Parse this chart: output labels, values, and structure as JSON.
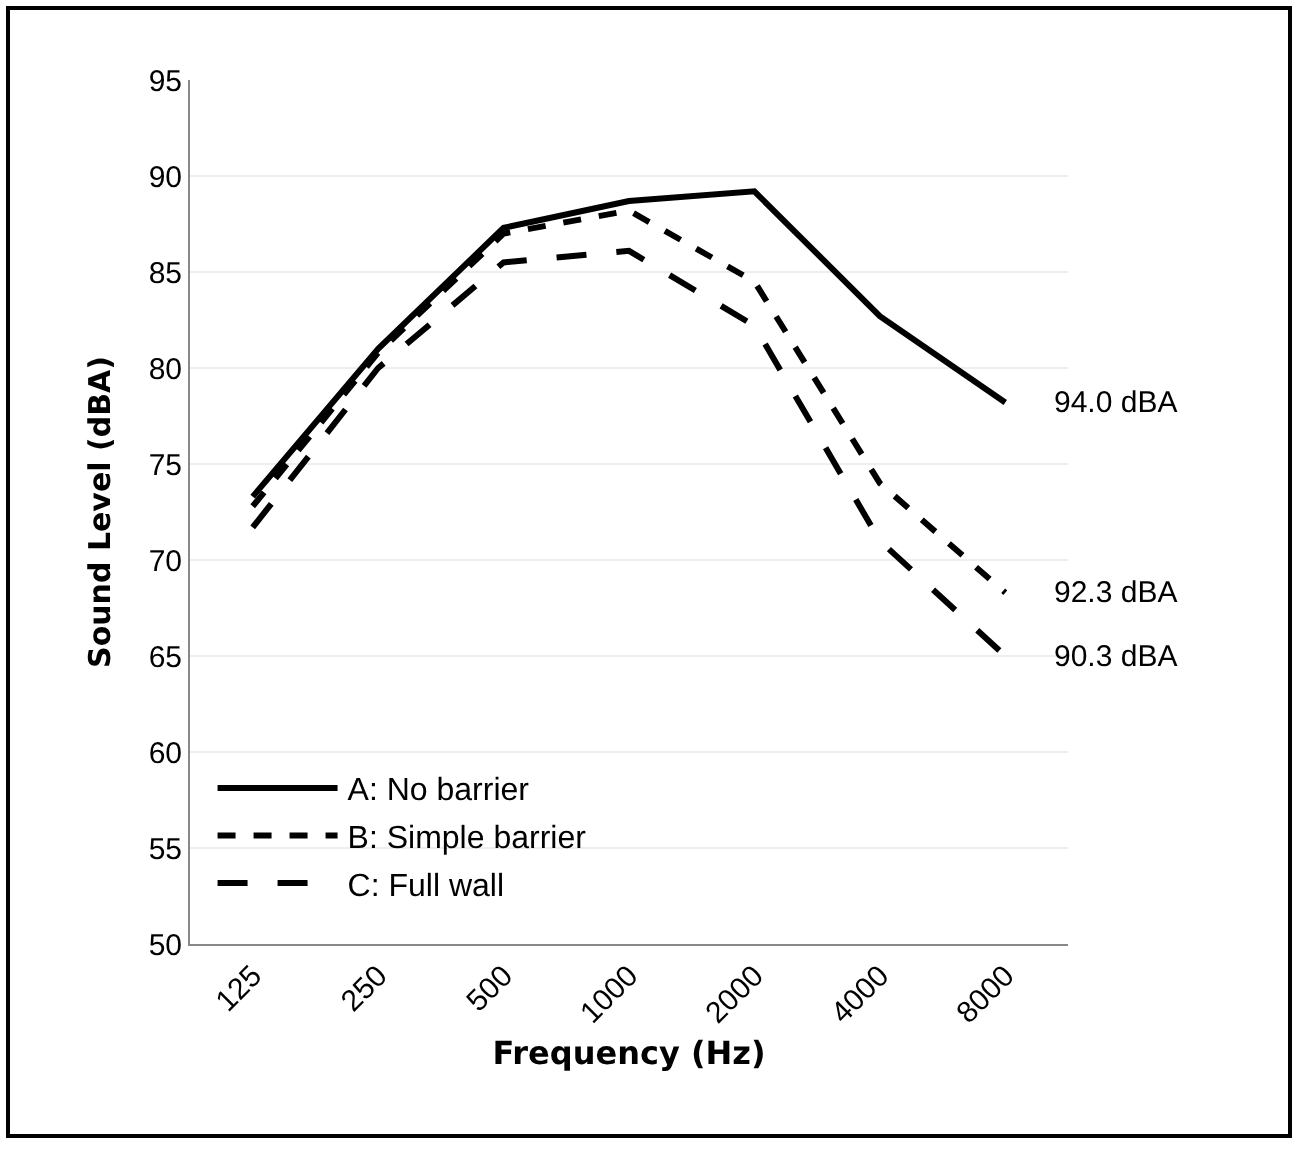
{
  "chart_data": {
    "type": "line",
    "xlabel": "Frequency (Hz)",
    "ylabel": "Sound Level (dBA)",
    "categories": [
      "125",
      "250",
      "500",
      "1000",
      "2000",
      "4000",
      "8000"
    ],
    "series": [
      {
        "name": "A: No barrier",
        "color": "#000000",
        "line_style": "solid",
        "values": [
          73.3,
          81.0,
          87.3,
          88.7,
          89.2,
          82.7,
          78.2
        ]
      },
      {
        "name": "B: Simple barrier",
        "color": "#000000",
        "line_style": "dotted",
        "values": [
          72.8,
          80.8,
          87.0,
          88.2,
          84.5,
          74.0,
          68.3
        ]
      },
      {
        "name": "C: Full wall",
        "color": "#000000",
        "line_style": "dashed",
        "values": [
          71.7,
          80.0,
          85.5,
          86.1,
          82.2,
          71.0,
          65.0
        ]
      }
    ],
    "ylim": [
      50,
      95
    ],
    "yticks": [
      50,
      55,
      60,
      65,
      70,
      75,
      80,
      85,
      90,
      95
    ],
    "grid": "y",
    "legend": "bottom left",
    "marker": "none",
    "annotations": [
      {
        "text": "94.0 dBA",
        "x": "8000",
        "y": 78.2
      },
      {
        "text": "92.3 dBA",
        "x": "8000",
        "y": 68.3
      },
      {
        "text": "90.3 dBA",
        "x": "8000",
        "y": 65.0
      }
    ]
  }
}
